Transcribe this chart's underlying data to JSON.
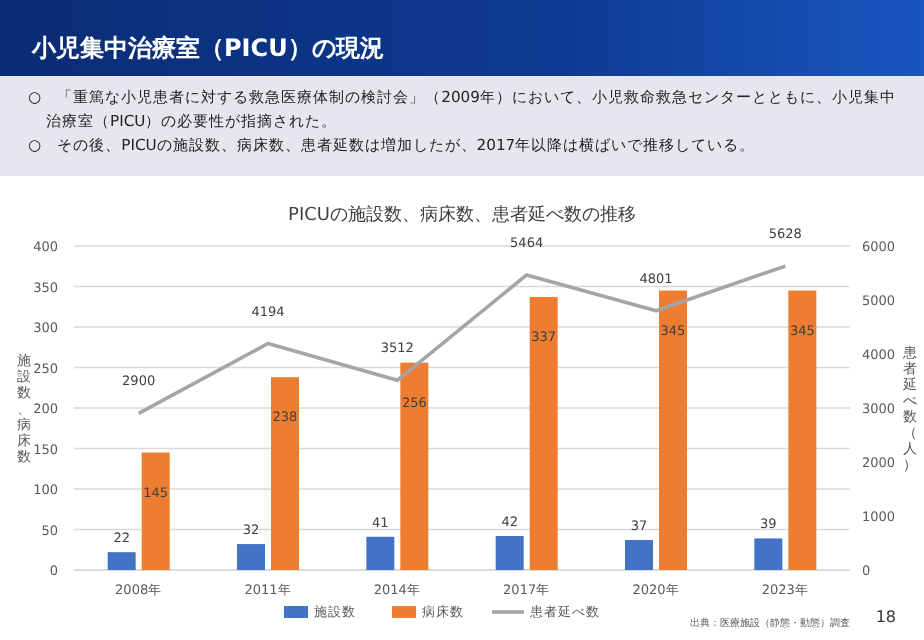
{
  "chart_data": {
    "type": "bar",
    "title": "小児集中治療室（PICU）の現況",
    "subtitle": "PICUの施設数、病床数、患者延べ数の推移",
    "annotations": [
      "○　「重篤な小児患者に対する救急医療体制の検討会」（2009年）において、小児救命救急センターとともに、小児集中治療室（PICU）の必要性が指摘された。",
      "○　その後、PICUの施設数、病床数、患者延数は増加したが、2017年以降は横ばいで推移している。",
      "出典：医療施設（静態・動態）調査",
      "18"
    ],
    "categories": [
      "2008年",
      "2011年",
      "2014年",
      "2017年",
      "2020年",
      "2023年"
    ],
    "series": [
      {
        "name": "施設数",
        "color": "#4472c4",
        "values": [
          22,
          32,
          41,
          42,
          37,
          39
        ]
      },
      {
        "name": "病床数",
        "color": "#ed7d31",
        "values": [
          145,
          238,
          256,
          337,
          345,
          345
        ]
      },
      {
        "name": "患者延べ数",
        "type": "line",
        "axis": "y2",
        "color": "#a5a5a5",
        "values": [
          2900,
          4194,
          3512,
          5464,
          4801,
          5628
        ]
      }
    ],
    "ylabel": "施設数、病床数",
    "y2label": "患者延べ数（人）",
    "ylim": [
      0,
      400
    ],
    "yticks": [
      0,
      50,
      100,
      150,
      200,
      250,
      300,
      350,
      400
    ],
    "y2lim": [
      0,
      6000
    ],
    "y2ticks": [
      0,
      1000,
      2000,
      3000,
      4000,
      5000,
      6000
    ],
    "data_labels": true,
    "grid": "y",
    "legend": "bottom"
  }
}
